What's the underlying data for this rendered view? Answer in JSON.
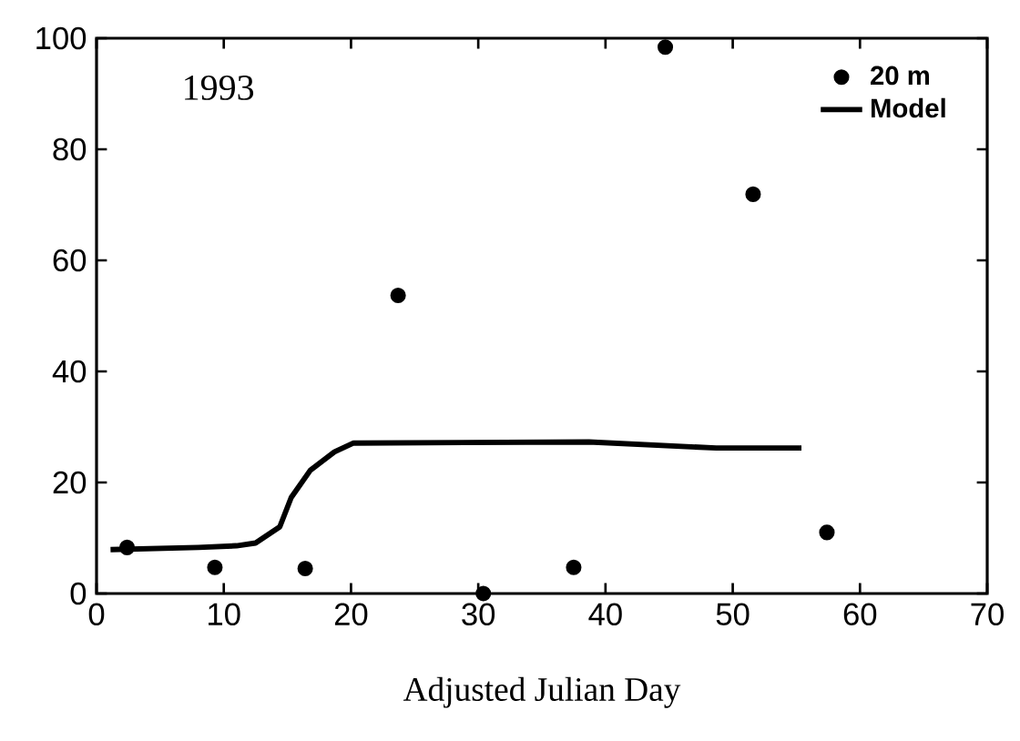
{
  "chart_data": {
    "type": "scatter",
    "xlabel": "Adjusted Julian Day",
    "annotations": [
      "1993"
    ],
    "series": [
      {
        "name": "20 m",
        "color": "#000000",
        "marker": "circle",
        "x": [
          2.4,
          9.3,
          16.4,
          23.7,
          30.4,
          37.5,
          44.7,
          51.6,
          57.4
        ],
        "values": [
          8.3,
          4.7,
          4.5,
          53.7,
          0,
          4.7,
          98.4,
          71.9,
          11
        ]
      },
      {
        "name": "Model",
        "type": "line",
        "color": "#000000",
        "marker": "none",
        "line_style": "solid",
        "x": [
          1.1,
          8,
          11,
          12.5,
          14.4,
          15.3,
          16.8,
          18.7,
          20.2,
          38.7,
          48.7,
          55.4
        ],
        "values": [
          7.9,
          8.3,
          8.6,
          9.1,
          12.0,
          17.3,
          22.2,
          25.5,
          27.1,
          27.3,
          26.2,
          26.2
        ]
      }
    ],
    "xlim": [
      0,
      70
    ],
    "ylim": [
      0,
      100
    ],
    "xticks": [
      0,
      10,
      20,
      30,
      40,
      50,
      60,
      70
    ],
    "yticks": [
      0,
      20,
      40,
      60,
      80,
      100
    ],
    "grid": false,
    "legend": "top right"
  }
}
